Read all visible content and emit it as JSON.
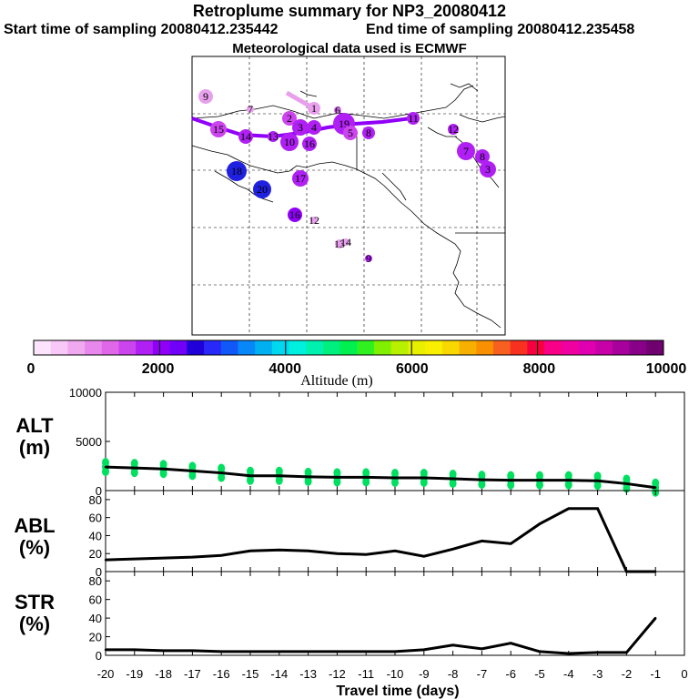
{
  "header": {
    "title": "Retroplume summary for NP3_20080412",
    "start": "Start time of sampling 20080412.235442",
    "end": "End time of sampling 20080412.235458",
    "met": "Meteorological data used is ECMWF"
  },
  "colorbar": {
    "label": "Altitude (m)",
    "ticks": [
      "0",
      "2000",
      "4000",
      "6000",
      "8000",
      "10000"
    ],
    "colors": [
      "#fce4fc",
      "#f8c8f8",
      "#f0a8f0",
      "#e888ec",
      "#e068e8",
      "#cc44ee",
      "#b020f4",
      "#9000f8",
      "#7000f8",
      "#2000d8",
      "#2828f8",
      "#1058f8",
      "#0888f8",
      "#00b0f0",
      "#00d8f0",
      "#00f0e0",
      "#00f0b0",
      "#00f080",
      "#00f050",
      "#30f020",
      "#80f000",
      "#b8f000",
      "#e8f000",
      "#f8f000",
      "#f8d800",
      "#f8b000",
      "#f89000",
      "#f86020",
      "#f83020",
      "#f80040",
      "#f80088",
      "#f000a0",
      "#e000b0",
      "#c800a8",
      "#a8009c",
      "#880088",
      "#700070"
    ]
  },
  "map": {
    "markers": [
      {
        "n": "9",
        "c": "#e8a0ec"
      },
      {
        "n": "7",
        "c": "#e8a0ec"
      },
      {
        "n": "1",
        "c": "#e8a0ec"
      },
      {
        "n": "6",
        "c": "#d070e8"
      },
      {
        "n": "2",
        "c": "#cc44ee"
      },
      {
        "n": "3",
        "c": "#b020f4"
      },
      {
        "n": "4",
        "c": "#b020f4"
      },
      {
        "n": "19",
        "c": "#b020f4"
      },
      {
        "n": "15",
        "c": "#cc44ee"
      },
      {
        "n": "14",
        "c": "#b020f4"
      },
      {
        "n": "13",
        "c": "#b020f4"
      },
      {
        "n": "10",
        "c": "#b020f4"
      },
      {
        "n": "16",
        "c": "#b020f4"
      },
      {
        "n": "5",
        "c": "#cc44ee"
      },
      {
        "n": "8",
        "c": "#b020f4"
      },
      {
        "n": "18",
        "c": "#2020e0"
      },
      {
        "n": "20",
        "c": "#2020e0"
      },
      {
        "n": "17",
        "c": "#b020f4"
      },
      {
        "n": "16",
        "c": "#9000f8"
      },
      {
        "n": "12",
        "c": "#e8a0ec"
      },
      {
        "n": "13",
        "c": "#e8a0ec"
      },
      {
        "n": "14",
        "c": "#e8a0ec"
      },
      {
        "n": "9",
        "c": "#b020f4"
      },
      {
        "n": "7",
        "c": "#b020f4"
      },
      {
        "n": "8",
        "c": "#b020f4"
      },
      {
        "n": "3",
        "c": "#b020f4"
      },
      {
        "n": "12",
        "c": "#b020f4"
      },
      {
        "n": "11",
        "c": "#b020f4"
      }
    ]
  },
  "chart_data": [
    {
      "type": "line",
      "name": "ALT",
      "ylabel": [
        "ALT",
        "(m)"
      ],
      "ylim": [
        0,
        10000
      ],
      "yticks": [
        "10000",
        "5000",
        "0"
      ],
      "x": [
        -20,
        -19,
        -18,
        -17,
        -16,
        -15,
        -14,
        -13,
        -12,
        -11,
        -10,
        -9,
        -8,
        -7,
        -6,
        -5,
        -4,
        -3,
        -2,
        -1
      ],
      "values": [
        2400,
        2300,
        2200,
        2000,
        1800,
        1500,
        1500,
        1400,
        1350,
        1350,
        1300,
        1300,
        1200,
        1100,
        1050,
        1050,
        1050,
        1000,
        700,
        300
      ],
      "scatter_color": "#00e060"
    },
    {
      "type": "line",
      "name": "ABL",
      "ylabel": [
        "ABL",
        "(%)"
      ],
      "ylim": [
        0,
        90
      ],
      "yticks": [
        "80",
        "60",
        "40",
        "20",
        "0"
      ],
      "x": [
        -20,
        -19,
        -18,
        -17,
        -16,
        -15,
        -14,
        -13,
        -12,
        -11,
        -10,
        -9,
        -8,
        -7,
        -6,
        -5,
        -4,
        -3,
        -2,
        -1
      ],
      "values": [
        13,
        14,
        15,
        16,
        18,
        23,
        24,
        23,
        20,
        19,
        23,
        17,
        25,
        34,
        31,
        53,
        70,
        70,
        0,
        0
      ]
    },
    {
      "type": "line",
      "name": "STR",
      "ylabel": [
        "STR",
        "(%)"
      ],
      "ylim": [
        0,
        90
      ],
      "yticks": [
        "80",
        "60",
        "40",
        "20",
        "0"
      ],
      "x": [
        -20,
        -19,
        -18,
        -17,
        -16,
        -15,
        -14,
        -13,
        -12,
        -11,
        -10,
        -9,
        -8,
        -7,
        -6,
        -5,
        -4,
        -3,
        -2,
        -1
      ],
      "values": [
        6,
        6,
        5,
        5,
        4,
        4,
        4,
        4,
        4,
        4,
        4,
        6,
        11,
        7,
        13,
        4,
        2,
        3,
        3,
        40
      ]
    }
  ],
  "xaxis": {
    "label": "Travel time (days)",
    "ticks": [
      "-20",
      "-19",
      "-18",
      "-17",
      "-16",
      "-15",
      "-14",
      "-13",
      "-12",
      "-11",
      "-10",
      "-9",
      "-8",
      "-7",
      "-6",
      "-5",
      "-4",
      "-3",
      "-2",
      "-1",
      "0"
    ]
  }
}
